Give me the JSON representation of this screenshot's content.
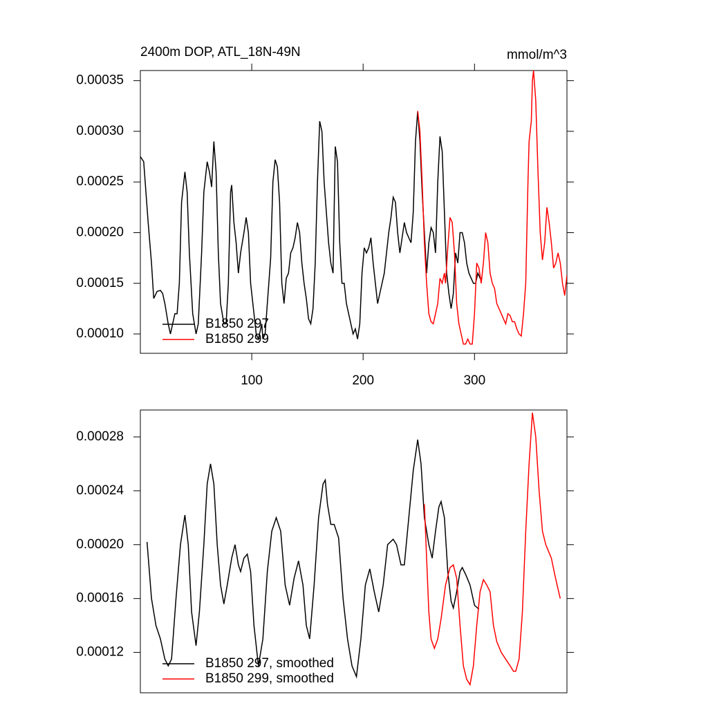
{
  "chart_data": [
    {
      "type": "line",
      "title": "2400m DOP, ATL_18N-49N",
      "units_label": "mmol/m^3",
      "xlim": [
        0,
        383
      ],
      "xticks": [
        100,
        200,
        300
      ],
      "ylim": [
        8.09e-05,
        0.00036
      ],
      "yticks": [
        {
          "value": 0.0001,
          "label": "0.00010"
        },
        0.00015,
        {
          "value": 0.0002,
          "label": "0.00020"
        },
        0.00025,
        {
          "value": 0.0003,
          "label": "0.00030"
        },
        0.00035
      ],
      "legend": "lower left",
      "series": [
        {
          "name": "B1850 297",
          "color": "#000000",
          "x": [
            0,
            3,
            7,
            10,
            12,
            15,
            18,
            20,
            22,
            25,
            27,
            29,
            31,
            33,
            35,
            37,
            40,
            42,
            44,
            47,
            50,
            52,
            55,
            57,
            60,
            62,
            64,
            66,
            68,
            70,
            72,
            75,
            77,
            79,
            81,
            82,
            84,
            86,
            88,
            90,
            93,
            95,
            97,
            99,
            102,
            104,
            106,
            109,
            110,
            112,
            115,
            117,
            119,
            121,
            123,
            125,
            127,
            129,
            131,
            133,
            135,
            137,
            139,
            141,
            143,
            145,
            147,
            149,
            151,
            153,
            155,
            157,
            159,
            161,
            163,
            165,
            167,
            169,
            171,
            173,
            175,
            177,
            179,
            181,
            183,
            185,
            187,
            189,
            191,
            193,
            195,
            197,
            199,
            201,
            203,
            205,
            207,
            209,
            211,
            213,
            215,
            217,
            219,
            221,
            223,
            225,
            227,
            229,
            231,
            233,
            235,
            237,
            239,
            241,
            243,
            245,
            247,
            249,
            251,
            253,
            255,
            257,
            259,
            261,
            263,
            265,
            267,
            269,
            271,
            273,
            275,
            277,
            279,
            281,
            283,
            285,
            287,
            289,
            291,
            293,
            295,
            297,
            299,
            301,
            303,
            305,
            307
          ],
          "values": [
            0.000275,
            0.00027,
            0.00021,
            0.00017,
            0.000135,
            0.000142,
            0.000143,
            0.00014,
            0.00013,
            0.00011,
            0.0001,
            0.00011,
            0.00012,
            0.00012,
            0.00015,
            0.00023,
            0.00026,
            0.00024,
            0.00018,
            0.00012,
            0.0001,
            0.00011,
            0.00018,
            0.00024,
            0.00027,
            0.00026,
            0.000245,
            0.00029,
            0.00026,
            0.00018,
            0.00013,
            0.00011,
            0.00011,
            0.00015,
            0.00024,
            0.000247,
            0.00021,
            0.00019,
            0.00016,
            0.00018,
            0.0002,
            0.000215,
            0.0002,
            0.00015,
            0.00012,
            0.0001,
            9.5e-05,
            0.00011,
            9.5e-05,
            0.0001,
            0.000145,
            0.000175,
            0.00025,
            0.000272,
            0.000265,
            0.00023,
            0.00015,
            0.00013,
            0.000155,
            0.00016,
            0.00018,
            0.000185,
            0.000195,
            0.00021,
            0.0002,
            0.00017,
            0.00015,
            0.000135,
            0.000115,
            0.00011,
            0.000125,
            0.00017,
            0.00025,
            0.00031,
            0.0003,
            0.00025,
            0.00022,
            0.00019,
            0.00017,
            0.00016,
            0.000285,
            0.00027,
            0.00019,
            0.00015,
            0.00015,
            0.00013,
            0.00012,
            0.00011,
            0.0001,
            0.000105,
            9.5e-05,
            0.00011,
            0.00016,
            0.000185,
            0.00018,
            0.000185,
            0.000195,
            0.00017,
            0.00015,
            0.00013,
            0.00014,
            0.00015,
            0.00016,
            0.00018,
            0.0002,
            0.000215,
            0.000235,
            0.00023,
            0.0002,
            0.00018,
            0.000195,
            0.00021,
            0.0002,
            0.000195,
            0.00019,
            0.00022,
            0.00029,
            0.00032,
            0.00029,
            0.00024,
            0.0002,
            0.00016,
            0.00019,
            0.000205,
            0.0002,
            0.00018,
            0.00025,
            0.000295,
            0.00028,
            0.00022,
            0.00016,
            0.00014,
            0.000125,
            0.00014,
            0.00018,
            0.00017,
            0.0002,
            0.0002,
            0.00019,
            0.00017,
            0.00016,
            0.000155,
            0.00015,
            0.00015,
            0.00016,
            0.000155,
            0.000155
          ]
        },
        {
          "name": "B1850 299",
          "color": "#ff0000",
          "x": [
            249,
            251,
            253,
            255,
            257,
            259,
            261,
            263,
            265,
            267,
            269,
            271,
            273,
            274,
            276,
            278,
            280,
            282,
            284,
            286,
            288,
            290,
            292,
            294,
            296,
            298,
            300,
            302,
            304,
            306,
            308,
            310,
            312,
            314,
            316,
            318,
            320,
            322,
            324,
            326,
            328,
            330,
            332,
            334,
            336,
            338,
            340,
            342,
            344,
            346,
            348,
            349,
            351,
            352,
            353,
            355,
            357,
            359,
            361,
            363,
            365,
            367,
            369,
            371,
            373,
            375,
            377,
            379,
            381,
            383
          ],
          "values": [
            0.00032,
            0.0003,
            0.00025,
            0.00019,
            0.00015,
            0.00012,
            0.000112,
            0.00011,
            0.00012,
            0.00013,
            0.000155,
            0.00015,
            0.00016,
            0.00015,
            0.000185,
            0.000215,
            0.00021,
            0.00018,
            0.00013,
            0.00011,
            0.0001,
            9e-05,
            9e-05,
            9.5e-05,
            9e-05,
            9e-05,
            0.00012,
            0.00017,
            0.000165,
            0.00015,
            0.00017,
            0.0002,
            0.00019,
            0.00016,
            0.00015,
            0.000145,
            0.00013,
            0.000125,
            0.00012,
            0.000115,
            0.00011,
            0.00012,
            0.000118,
            0.000112,
            0.000112,
            0.000105,
            0.0001,
            9.8e-05,
            0.00012,
            0.00015,
            0.00025,
            0.00029,
            0.00031,
            0.00035,
            0.00036,
            0.00033,
            0.00026,
            0.0002,
            0.000173,
            0.00019,
            0.000225,
            0.00021,
            0.00019,
            0.000165,
            0.00017,
            0.00018,
            0.00017,
            0.00015,
            0.000138,
            0.000158
          ]
        }
      ]
    },
    {
      "type": "line",
      "xlim": [
        0,
        383
      ],
      "ylim": [
        9e-05,
        0.0003
      ],
      "yticks": [
        0.00012,
        0.00016,
        {
          "value": 0.0002,
          "label": "0.00020"
        },
        0.00024,
        0.00028
      ],
      "legend": "lower left",
      "series": [
        {
          "name": "B1850 297, smoothed",
          "color": "#000000",
          "x": [
            6,
            10,
            14,
            18,
            22,
            25,
            28,
            32,
            36,
            40,
            43,
            46,
            50,
            53,
            57,
            60,
            63,
            66,
            69,
            72,
            75,
            78,
            82,
            85,
            88,
            90,
            93,
            96,
            99,
            102,
            106,
            110,
            114,
            118,
            122,
            126,
            130,
            134,
            138,
            142,
            146,
            149,
            152,
            156,
            160,
            164,
            166,
            168,
            171,
            174,
            178,
            182,
            186,
            190,
            194,
            198,
            202,
            206,
            210,
            214,
            218,
            222,
            227,
            230,
            234,
            237,
            241,
            245,
            249,
            252,
            255,
            259,
            262,
            265,
            268,
            270,
            273,
            276,
            279,
            281,
            284,
            287,
            289,
            292,
            296,
            300,
            304
          ],
          "values": [
            0.000202,
            0.00016,
            0.00014,
            0.00013,
            0.000115,
            0.00011,
            0.000115,
            0.00016,
            0.0002,
            0.000222,
            0.0002,
            0.00015,
            0.000125,
            0.00015,
            0.0002,
            0.000245,
            0.00026,
            0.000245,
            0.0002,
            0.00017,
            0.000156,
            0.00017,
            0.00019,
            0.0002,
            0.000185,
            0.00018,
            0.00019,
            0.000193,
            0.00018,
            0.00014,
            0.00011,
            0.00013,
            0.00018,
            0.00021,
            0.00022,
            0.00021,
            0.00017,
            0.000155,
            0.000175,
            0.000188,
            0.00017,
            0.00014,
            0.00013,
            0.00017,
            0.00022,
            0.000245,
            0.000248,
            0.00023,
            0.000215,
            0.000215,
            0.000205,
            0.00016,
            0.00013,
            0.00011,
            0.000102,
            0.00013,
            0.00017,
            0.000182,
            0.000165,
            0.00015,
            0.00017,
            0.0002,
            0.000204,
            0.0002,
            0.000185,
            0.000185,
            0.00022,
            0.000255,
            0.000278,
            0.00026,
            0.00022,
            0.0002,
            0.00019,
            0.00021,
            0.000228,
            0.000232,
            0.00022,
            0.00018,
            0.000158,
            0.000153,
            0.000165,
            0.00018,
            0.000183,
            0.000178,
            0.00017,
            0.000155,
            0.000152
          ]
        },
        {
          "name": "B1850 299, smoothed",
          "color": "#ff0000",
          "x": [
            255,
            257,
            259,
            261,
            264,
            267,
            270,
            274,
            278,
            281,
            284,
            287,
            290,
            293,
            296,
            299,
            302,
            305,
            308,
            311,
            314,
            317,
            320,
            324,
            328,
            332,
            335,
            337,
            340,
            343,
            346,
            349,
            352,
            355,
            358,
            361,
            364,
            366,
            369,
            372,
            375,
            377
          ],
          "values": [
            0.00023,
            0.00019,
            0.00015,
            0.00013,
            0.000123,
            0.00013,
            0.000145,
            0.00017,
            0.000183,
            0.000185,
            0.000175,
            0.00014,
            0.00011,
            0.0001,
            9.6e-05,
            0.00011,
            0.00014,
            0.000165,
            0.000174,
            0.00017,
            0.000165,
            0.00014,
            0.000128,
            0.00012,
            0.000115,
            0.00011,
            0.000106,
            0.000106,
            0.000115,
            0.00015,
            0.00021,
            0.00026,
            0.000298,
            0.00028,
            0.00024,
            0.00021,
            0.0002,
            0.000196,
            0.00019,
            0.000178,
            0.000167,
            0.00016
          ]
        }
      ]
    }
  ]
}
